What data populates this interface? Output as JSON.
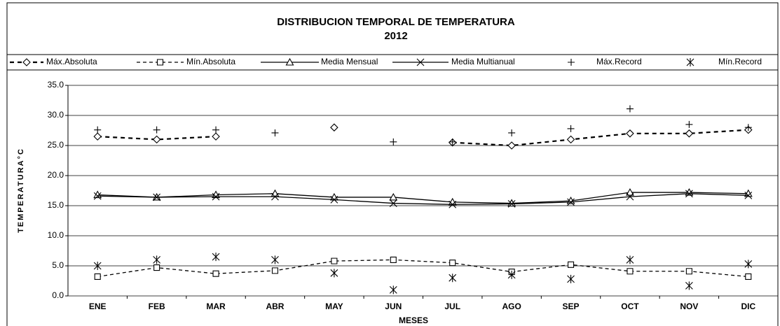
{
  "chart_data": {
    "type": "line",
    "title": "DISTRIBUCION TEMPORAL DE TEMPERATURA",
    "subtitle": "2012",
    "x_label": "MESES",
    "y_label": "TEMPERATURA°C",
    "categories": [
      "ENE",
      "FEB",
      "MAR",
      "ABR",
      "MAY",
      "JUN",
      "JUL",
      "AGO",
      "SEP",
      "OCT",
      "NOV",
      "DIC"
    ],
    "ylim": [
      0,
      35
    ],
    "yticks": [
      {
        "value": 0,
        "label": "0.0"
      },
      {
        "value": 5,
        "label": "5.0"
      },
      {
        "value": 10,
        "label": "10.0"
      },
      {
        "value": 15,
        "label": "15.0"
      },
      {
        "value": 20,
        "label": "20.0"
      },
      {
        "value": 25,
        "label": "25.0"
      },
      {
        "value": 30,
        "label": "30.0"
      },
      {
        "value": 35,
        "label": "35.0"
      }
    ],
    "grid": true,
    "legend": "top",
    "series": [
      {
        "name": "Máx.Absoluta",
        "color": "#000000",
        "marker": "diamond",
        "line": "dashed",
        "values": [
          26.5,
          26,
          26.5,
          null,
          28,
          null,
          25.5,
          25,
          26,
          27,
          27,
          27.6
        ]
      },
      {
        "name": "Mín.Absoluta",
        "color": "#000000",
        "marker": "square",
        "line": "dashed",
        "values": [
          3.2,
          4.7,
          3.7,
          4.2,
          5.8,
          6.0,
          5.5,
          4.0,
          5.2,
          4.1,
          4.1,
          3.2
        ]
      },
      {
        "name": "Media Mensual",
        "color": "#000000",
        "marker": "triangle",
        "line": "solid",
        "values": [
          16.8,
          16.4,
          16.8,
          17.0,
          16.4,
          16.4,
          15.6,
          15.4,
          15.8,
          17.2,
          17.2,
          17.0
        ]
      },
      {
        "name": "Media Multianual",
        "color": "#000000",
        "marker": "x",
        "line": "solid",
        "values": [
          16.6,
          16.4,
          16.5,
          16.5,
          16.0,
          15.4,
          15.2,
          15.3,
          15.6,
          16.5,
          17.0,
          16.7
        ]
      },
      {
        "name": "Máx.Record",
        "color": "#000000",
        "marker": "plus",
        "line": "none",
        "values": [
          27.6,
          27.6,
          27.6,
          27.1,
          null,
          25.6,
          25.6,
          27.1,
          27.8,
          31.1,
          28.5,
          28.0
        ]
      },
      {
        "name": "Mín.Record",
        "color": "#000000",
        "marker": "asterisk",
        "line": "none",
        "values": [
          5.0,
          6.0,
          6.5,
          6.0,
          3.8,
          1.0,
          3.0,
          3.5,
          2.8,
          6.0,
          1.7,
          5.3
        ]
      }
    ]
  }
}
